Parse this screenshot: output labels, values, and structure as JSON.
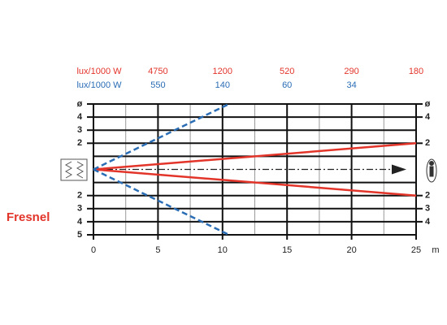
{
  "chart_data": {
    "type": "line",
    "title": "Fresnel",
    "xlim": [
      0,
      25
    ],
    "xticks": [
      0,
      5,
      10,
      15,
      20,
      25
    ],
    "xlabel": "m",
    "ylim": [
      -5,
      5
    ],
    "yticks": [
      {
        "value": 5,
        "label": "ø"
      },
      4,
      3,
      2,
      {
        "value": -2,
        "label": "2"
      },
      {
        "value": -3,
        "label": "3"
      },
      {
        "value": -4,
        "label": "4"
      },
      {
        "value": -5,
        "label": "5"
      }
    ],
    "y2ticks": [
      {
        "value": 5,
        "label": "ø"
      },
      4,
      2,
      {
        "value": -2,
        "label": "2"
      },
      {
        "value": -3,
        "label": "3"
      },
      {
        "value": -4,
        "label": "4"
      }
    ],
    "grid": true,
    "series": [
      {
        "color": "#e3342a",
        "x": [
          0,
          25
        ],
        "values": [
          0,
          2
        ]
      },
      {
        "color": "#e3342a",
        "x": [
          0,
          25
        ],
        "values": [
          0,
          -2
        ]
      },
      {
        "color": "#2a6db5",
        "x": [
          0,
          10.5
        ],
        "values": [
          0,
          5
        ]
      },
      {
        "color": "#2a6db5",
        "x": [
          0,
          10.5
        ],
        "values": [
          0,
          -5
        ]
      }
    ],
    "lux_rows": [
      {
        "label": "lux/1000 W",
        "color": "#e3342a",
        "values": [
          4750,
          1200,
          520,
          290,
          180
        ]
      },
      {
        "label": "lux/1000 W",
        "color": "#2a6db5",
        "values": [
          550,
          140,
          60,
          34
        ]
      }
    ]
  }
}
